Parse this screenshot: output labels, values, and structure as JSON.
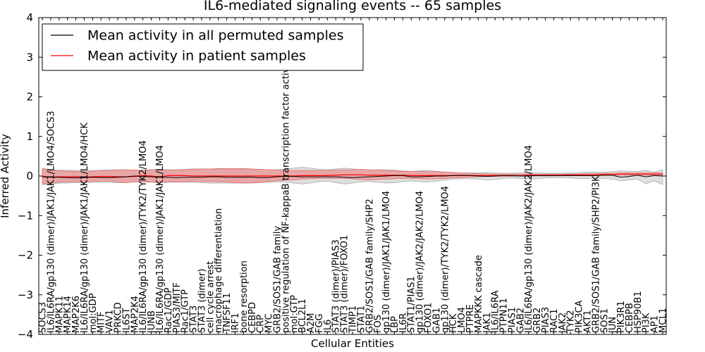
{
  "chart_data": {
    "type": "line",
    "title": "IL6-mediated signaling events -- 65 samples",
    "xlabel": "Cellular Entities",
    "ylabel": "Inferred Activity",
    "ylim": [
      -4,
      4
    ],
    "yticks": [
      "4",
      "3",
      "2",
      "1",
      "0",
      "−1",
      "−2",
      "−3",
      "−4"
    ],
    "ytick_values": [
      4,
      3,
      2,
      1,
      0,
      -1,
      -2,
      -3,
      -4
    ],
    "legend": {
      "placement": "top-left",
      "entries": [
        {
          "label": "Mean activity in all permuted samples",
          "color": "#000000"
        },
        {
          "label": "Mean activity in patient samples",
          "color": "#ff0000"
        }
      ]
    },
    "categories": [
      "SOCS3",
      "IL6/IL6RA/gp130 (dimer)/JAK1/JAK1/LMO4/SOCS3",
      "MAPK11",
      "MAPK14",
      "MAP2K6",
      "IL6/IL6RA/gp130 (dimer)/JAK1/JAK1/LMO4/HCK",
      "mol:GDP",
      "MITF",
      "VAV1",
      "PRKCD",
      "IL6ST",
      "MAP2K4",
      "IL6/IL6RA/gp130 (dimer)/TYK2/TYK2/LMO4",
      "JUNB",
      "IL6/IL6RA/gp130 (dimer)/JAK1/JAK1/LMO4",
      "Rac1/GDP",
      "PIAS3/MITF",
      "Rac1/GTP",
      "STAT3",
      "STAT3 (dimer)",
      "cell cycle arrest",
      "macrophage differentiation",
      "TNFSF11",
      "IRF1",
      "bone resorption",
      "CEBPD",
      "CRP",
      "MYC",
      "GRB2/SOS1/GAB family",
      "positive regulation of NF-kappaB transcription factor activity",
      "mol:GTP",
      "BCL2L1",
      "A2M",
      "FGG",
      "IL6",
      "STAT3 (dimer)/PIAS3",
      "STAT3 (dimer)/FOXO1",
      "TIMP1",
      "STAT1",
      "GRB2/SOS1/GAB family/SHP2",
      "FOS",
      "gp130 (dimer)/JAK1/JAK1/LMO4",
      "LBP",
      "IL6R",
      "STAT1/PIAS1",
      "gp130 (dimer)/JAK2/JAK2/LMO4",
      "FOXO1",
      "GAB1",
      "gp130 (dimer)/TYK2/TYK2/LMO4",
      "HCK",
      "LMO4",
      "PTPRE",
      "MAPKKK cascade",
      "JAK1",
      "IL6/IL6RA",
      "PTPN11",
      "PIAS1",
      "GAB2",
      "IL6/IL6RA/gp130 (dimer)/JAK2/JAK2/LMO4",
      "GRB2",
      "PIAS3",
      "RAC1",
      "JAK2",
      "TYK2",
      "PIK3CA",
      "AKT1",
      "GRB2/SOS1/GAB family/SHP2/PI3K",
      "SOS1",
      "JUN",
      "PIK3R1",
      "CEBPB",
      "HSP90B1",
      "PI3K",
      "AP1",
      "MCL1"
    ],
    "series": [
      {
        "name": "Mean activity in patient samples",
        "color": "#ff0000",
        "values": [
          0.0,
          -0.03,
          -0.02,
          -0.02,
          -0.01,
          -0.03,
          -0.02,
          -0.01,
          -0.01,
          -0.02,
          -0.02,
          -0.01,
          0.01,
          0.0,
          -0.02,
          0.01,
          0.01,
          0.01,
          0.0,
          0.0,
          0.0,
          0.0,
          0.0,
          0.0,
          0.0,
          0.0,
          0.0,
          0.0,
          0.0,
          0.0,
          0.0,
          0.01,
          0.01,
          0.01,
          0.01,
          0.02,
          0.03,
          0.03,
          0.03,
          0.02,
          0.02,
          0.02,
          0.02,
          0.02,
          0.01,
          0.01,
          0.01,
          0.01,
          0.01,
          0.01,
          0.01,
          0.01,
          0.01,
          0.01,
          0.01,
          0.01,
          0.01,
          0.01,
          0.02,
          0.02,
          0.02,
          0.02,
          0.02,
          0.03,
          0.03,
          0.03,
          0.03,
          0.04,
          0.04,
          0.05,
          0.05,
          0.05,
          0.05,
          0.05,
          0.05
        ],
        "lower": [
          -0.2,
          -0.18,
          -0.16,
          -0.15,
          -0.14,
          -0.15,
          -0.14,
          -0.13,
          -0.13,
          -0.16,
          -0.17,
          -0.15,
          -0.14,
          -0.15,
          -0.16,
          -0.15,
          -0.15,
          -0.14,
          -0.14,
          -0.14,
          -0.14,
          -0.15,
          -0.15,
          -0.17,
          -0.18,
          -0.17,
          -0.16,
          -0.14,
          -0.12,
          -0.11,
          -0.1,
          -0.08,
          -0.07,
          -0.06,
          -0.06,
          -0.06,
          -0.06,
          -0.07,
          -0.09,
          -0.1,
          -0.09,
          -0.08,
          -0.07,
          -0.06,
          -0.06,
          -0.07,
          -0.08,
          -0.07,
          -0.06,
          -0.05,
          -0.04,
          -0.03,
          -0.02,
          -0.01,
          -0.01,
          -0.01,
          -0.01,
          0.0,
          0.0,
          0.0,
          0.0,
          0.0,
          0.0,
          0.01,
          0.01,
          0.01,
          0.01,
          0.02,
          0.02,
          0.02,
          0.02,
          0.02,
          0.02,
          0.02,
          0.02
        ],
        "upper": [
          0.18,
          0.14,
          0.13,
          0.12,
          0.12,
          0.11,
          0.12,
          0.13,
          0.14,
          0.15,
          0.16,
          0.15,
          0.14,
          0.15,
          0.16,
          0.15,
          0.15,
          0.16,
          0.17,
          0.18,
          0.18,
          0.19,
          0.19,
          0.19,
          0.19,
          0.18,
          0.17,
          0.16,
          0.15,
          0.14,
          0.14,
          0.14,
          0.14,
          0.14,
          0.14,
          0.15,
          0.16,
          0.16,
          0.17,
          0.16,
          0.15,
          0.14,
          0.13,
          0.12,
          0.12,
          0.12,
          0.11,
          0.11,
          0.1,
          0.09,
          0.08,
          0.07,
          0.06,
          0.05,
          0.05,
          0.05,
          0.05,
          0.05,
          0.05,
          0.05,
          0.05,
          0.05,
          0.05,
          0.05,
          0.05,
          0.06,
          0.06,
          0.07,
          0.07,
          0.08,
          0.08,
          0.08,
          0.08,
          0.08,
          0.08
        ]
      },
      {
        "name": "Mean activity in all permuted samples",
        "color": "#000000",
        "values": [
          -0.02,
          -0.03,
          -0.03,
          -0.04,
          -0.05,
          -0.04,
          -0.03,
          -0.04,
          -0.04,
          -0.03,
          -0.02,
          0.0,
          -0.01,
          -0.02,
          -0.03,
          -0.03,
          -0.04,
          -0.03,
          -0.03,
          -0.03,
          -0.02,
          -0.02,
          -0.03,
          -0.03,
          -0.03,
          -0.03,
          -0.04,
          -0.04,
          -0.02,
          -0.01,
          -0.01,
          -0.02,
          -0.02,
          -0.02,
          -0.02,
          -0.02,
          -0.03,
          -0.04,
          -0.03,
          -0.02,
          -0.01,
          0.0,
          0.01,
          0.01,
          -0.02,
          -0.02,
          -0.01,
          0.0,
          0.0,
          0.01,
          0.02,
          0.01,
          0.0,
          -0.01,
          0.0,
          0.01,
          0.01,
          0.0,
          0.0,
          0.01,
          0.01,
          0.01,
          0.01,
          0.01,
          0.01,
          0.01,
          0.01,
          0.02,
          0.02,
          -0.03,
          -0.01,
          0.02,
          -0.02,
          0.01,
          0.0
        ],
        "lower": [
          -0.22,
          -0.2,
          -0.18,
          -0.18,
          -0.17,
          -0.17,
          -0.16,
          -0.16,
          -0.16,
          -0.17,
          -0.17,
          -0.15,
          -0.15,
          -0.16,
          -0.17,
          -0.16,
          -0.16,
          -0.16,
          -0.16,
          -0.17,
          -0.18,
          -0.18,
          -0.18,
          -0.18,
          -0.18,
          -0.18,
          -0.17,
          -0.15,
          -0.15,
          -0.16,
          -0.18,
          -0.2,
          -0.18,
          -0.14,
          -0.13,
          -0.17,
          -0.2,
          -0.18,
          -0.15,
          -0.14,
          -0.16,
          -0.18,
          -0.17,
          -0.14,
          -0.12,
          -0.14,
          -0.15,
          -0.13,
          -0.1,
          -0.08,
          -0.07,
          -0.07,
          -0.08,
          -0.1,
          -0.09,
          -0.06,
          -0.05,
          -0.06,
          -0.08,
          -0.07,
          -0.05,
          -0.04,
          -0.04,
          -0.05,
          -0.06,
          -0.06,
          -0.05,
          -0.06,
          -0.08,
          -0.12,
          -0.1,
          -0.08,
          -0.2,
          -0.12,
          -0.22
        ],
        "upper": [
          0.2,
          0.16,
          0.15,
          0.15,
          0.14,
          0.14,
          0.14,
          0.15,
          0.15,
          0.16,
          0.16,
          0.15,
          0.15,
          0.16,
          0.17,
          0.16,
          0.16,
          0.17,
          0.18,
          0.18,
          0.18,
          0.18,
          0.18,
          0.18,
          0.18,
          0.17,
          0.17,
          0.16,
          0.16,
          0.18,
          0.2,
          0.22,
          0.2,
          0.17,
          0.16,
          0.18,
          0.2,
          0.18,
          0.16,
          0.15,
          0.16,
          0.16,
          0.15,
          0.13,
          0.12,
          0.13,
          0.14,
          0.12,
          0.1,
          0.09,
          0.08,
          0.08,
          0.08,
          0.09,
          0.08,
          0.07,
          0.07,
          0.08,
          0.09,
          0.08,
          0.07,
          0.07,
          0.07,
          0.08,
          0.09,
          0.1,
          0.1,
          0.1,
          0.11,
          0.13,
          0.12,
          0.11,
          0.14,
          0.1,
          0.16
        ]
      }
    ]
  }
}
